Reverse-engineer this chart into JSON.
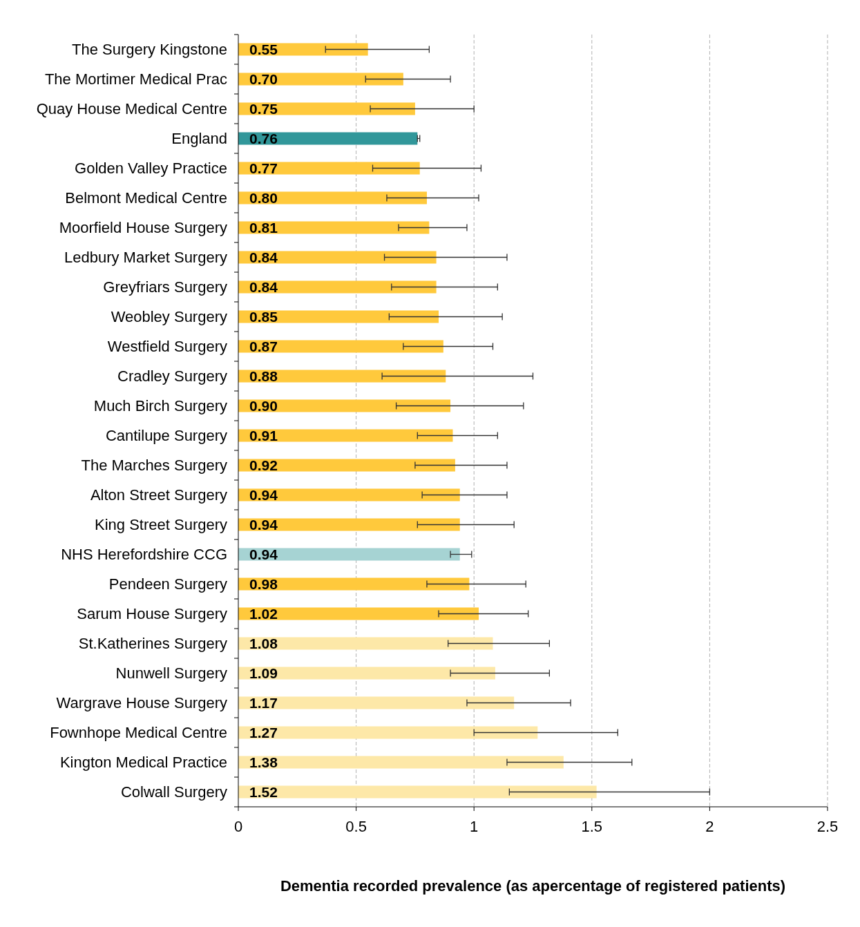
{
  "chart_data": {
    "type": "bar",
    "orientation": "horizontal",
    "xlabel": "Dementia recorded prevalence (as apercentage of registered patients)",
    "categories": [
      "The Surgery Kingstone",
      "The Mortimer Medical Prac",
      "Quay House Medical Centre",
      "England",
      "Golden Valley Practice",
      "Belmont Medical Centre",
      "Moorfield House Surgery",
      "Ledbury Market Surgery",
      "Greyfriars Surgery",
      "Weobley Surgery",
      "Westfield Surgery",
      "Cradley Surgery",
      "Much Birch Surgery",
      "Cantilupe Surgery",
      "The Marches Surgery",
      "Alton Street Surgery",
      "King Street Surgery",
      "NHS Herefordshire CCG",
      "Pendeen Surgery",
      "Sarum House Surgery",
      "St.Katherines Surgery",
      "Nunwell Surgery",
      "Wargrave House Surgery",
      "Fownhope Medical Centre",
      "Kington Medical Practice",
      "Colwall Surgery"
    ],
    "values": [
      0.55,
      0.7,
      0.75,
      0.76,
      0.77,
      0.8,
      0.81,
      0.84,
      0.84,
      0.85,
      0.87,
      0.88,
      0.9,
      0.91,
      0.92,
      0.94,
      0.94,
      0.94,
      0.98,
      1.02,
      1.08,
      1.09,
      1.17,
      1.27,
      1.38,
      1.52
    ],
    "value_labels": [
      "0.55",
      "0.70",
      "0.75",
      "0.76",
      "0.77",
      "0.80",
      "0.81",
      "0.84",
      "0.84",
      "0.85",
      "0.87",
      "0.88",
      "0.90",
      "0.91",
      "0.92",
      "0.94",
      "0.94",
      "0.94",
      "0.98",
      "1.02",
      "1.08",
      "1.09",
      "1.17",
      "1.27",
      "1.38",
      "1.52"
    ],
    "errors": [
      [
        0.37,
        0.81
      ],
      [
        0.54,
        0.9
      ],
      [
        0.56,
        1.0
      ],
      [
        0.76,
        0.77
      ],
      [
        0.57,
        1.03
      ],
      [
        0.63,
        1.02
      ],
      [
        0.68,
        0.97
      ],
      [
        0.62,
        1.14
      ],
      [
        0.65,
        1.1
      ],
      [
        0.64,
        1.12
      ],
      [
        0.7,
        1.08
      ],
      [
        0.61,
        1.25
      ],
      [
        0.67,
        1.21
      ],
      [
        0.76,
        1.1
      ],
      [
        0.75,
        1.14
      ],
      [
        0.78,
        1.14
      ],
      [
        0.76,
        1.17
      ],
      [
        0.9,
        0.99
      ],
      [
        0.8,
        1.22
      ],
      [
        0.85,
        1.23
      ],
      [
        0.89,
        1.32
      ],
      [
        0.9,
        1.32
      ],
      [
        0.97,
        1.41
      ],
      [
        1.0,
        1.61
      ],
      [
        1.14,
        1.67
      ],
      [
        1.15,
        2.0
      ]
    ],
    "colors": [
      "#ffc93c",
      "#ffc93c",
      "#ffc93c",
      "#31979a",
      "#ffc93c",
      "#ffc93c",
      "#ffc93c",
      "#ffc93c",
      "#ffc93c",
      "#ffc93c",
      "#ffc93c",
      "#ffc93c",
      "#ffc93c",
      "#ffc93c",
      "#ffc93c",
      "#ffc93c",
      "#ffc93c",
      "#a6d3d3",
      "#ffc93c",
      "#ffc93c",
      "#fde8a8",
      "#fde8a8",
      "#fde8a8",
      "#fde8a8",
      "#fde8a8",
      "#fde8a8"
    ],
    "xlim": [
      0,
      2.5
    ],
    "xticks": [
      0,
      0.5,
      1,
      1.5,
      2,
      2.5
    ],
    "grid": "x"
  }
}
